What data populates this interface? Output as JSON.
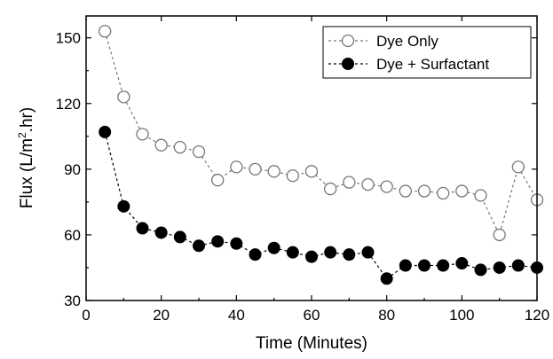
{
  "chart_data": {
    "type": "scatter",
    "xlabel": "Time (Minutes)",
    "ylabel_parts": [
      "Flux (L/m",
      "2",
      ".hr)"
    ],
    "xlim": [
      0,
      120
    ],
    "ylim": [
      30,
      160
    ],
    "xticks": [
      0,
      20,
      40,
      60,
      80,
      100,
      120
    ],
    "yticks": [
      30,
      60,
      90,
      120,
      150
    ],
    "grid": false,
    "legend_position": "top-right",
    "series": [
      {
        "name": "Dye Only",
        "marker": "open-circle",
        "line": "dashed",
        "color": "#777777",
        "x": [
          5,
          10,
          15,
          20,
          25,
          30,
          35,
          40,
          45,
          50,
          55,
          60,
          65,
          70,
          75,
          80,
          85,
          90,
          95,
          100,
          105,
          110,
          115,
          120
        ],
        "y": [
          153,
          123,
          106,
          101,
          100,
          98,
          85,
          91,
          90,
          89,
          87,
          89,
          81,
          84,
          83,
          82,
          80,
          80,
          79,
          80,
          78,
          60,
          91,
          76
        ]
      },
      {
        "name": "Dye + Surfactant",
        "marker": "filled-circle",
        "line": "dashed",
        "color": "#000000",
        "x": [
          5,
          10,
          15,
          20,
          25,
          30,
          35,
          40,
          45,
          50,
          55,
          60,
          65,
          70,
          75,
          80,
          85,
          90,
          95,
          100,
          105,
          110,
          115,
          120
        ],
        "y": [
          107,
          73,
          63,
          61,
          59,
          55,
          57,
          56,
          51,
          54,
          52,
          50,
          52,
          51,
          52,
          40,
          46,
          46,
          46,
          47,
          44,
          45,
          46,
          45
        ]
      }
    ]
  }
}
